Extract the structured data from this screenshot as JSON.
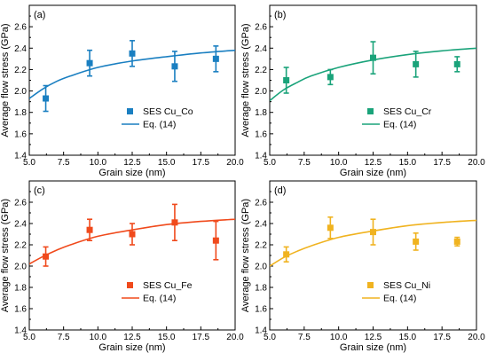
{
  "chart_data": [
    {
      "type": "scatter",
      "panel_label": "(a)",
      "xlabel": "Grain size (nm)",
      "ylabel": "Average flow stress (GPa)",
      "xlim": [
        5.0,
        20.0
      ],
      "ylim": [
        1.4,
        2.8
      ],
      "xticks": [
        "5.0",
        "7.5",
        "10.0",
        "12.5",
        "15.0",
        "17.5",
        "20.0"
      ],
      "yticks": [
        "1.4",
        "1.6",
        "1.8",
        "2.0",
        "2.2",
        "2.4",
        "2.6"
      ],
      "color": "#1a7fc1",
      "legend_position": "center-right",
      "series": [
        {
          "name": "SES Cu_Co",
          "kind": "points-with-error",
          "x": [
            6.2,
            9.4,
            12.5,
            15.6,
            18.6
          ],
          "y": [
            1.93,
            2.26,
            2.35,
            2.23,
            2.3
          ],
          "error": [
            0.12,
            0.12,
            0.12,
            0.14,
            0.12
          ]
        },
        {
          "name": "Eq. (14)",
          "kind": "line",
          "x": [
            5.0,
            6.0,
            7.0,
            8.0,
            10.0,
            12.5,
            15.0,
            17.5,
            20.0
          ],
          "y": [
            1.93,
            2.02,
            2.09,
            2.14,
            2.22,
            2.28,
            2.32,
            2.355,
            2.38
          ]
        }
      ]
    },
    {
      "type": "scatter",
      "panel_label": "(b)",
      "xlabel": "Grain size (nm)",
      "ylabel": "Average flow stress (GPa)",
      "xlim": [
        5.0,
        20.0
      ],
      "ylim": [
        1.4,
        2.8
      ],
      "xticks": [
        "5.0",
        "7.5",
        "10.0",
        "12.5",
        "15.0",
        "17.5",
        "20.0"
      ],
      "yticks": [
        "1.4",
        "1.6",
        "1.8",
        "2.0",
        "2.2",
        "2.4",
        "2.6"
      ],
      "color": "#1aa37a",
      "legend_position": "center-right",
      "series": [
        {
          "name": "SES Cu_Cr",
          "kind": "points-with-error",
          "x": [
            6.2,
            9.4,
            12.5,
            15.6,
            18.6
          ],
          "y": [
            2.1,
            2.13,
            2.31,
            2.25,
            2.25
          ],
          "error": [
            0.12,
            0.07,
            0.15,
            0.12,
            0.07
          ]
        },
        {
          "name": "Eq. (14)",
          "kind": "line",
          "x": [
            5.0,
            6.0,
            7.0,
            8.0,
            10.0,
            12.5,
            15.0,
            17.5,
            20.0
          ],
          "y": [
            1.91,
            2.01,
            2.08,
            2.14,
            2.22,
            2.29,
            2.34,
            2.375,
            2.4
          ]
        }
      ]
    },
    {
      "type": "scatter",
      "panel_label": "(c)",
      "xlabel": "Grain size (nm)",
      "ylabel": "Average flow stress (GPa)",
      "xlim": [
        5.0,
        20.0
      ],
      "ylim": [
        1.4,
        2.8
      ],
      "xticks": [
        "5.0",
        "7.5",
        "10.0",
        "12.5",
        "15.0",
        "17.5",
        "20.0"
      ],
      "yticks": [
        "1.4",
        "1.6",
        "1.8",
        "2.0",
        "2.2",
        "2.4",
        "2.6"
      ],
      "color": "#f04a1c",
      "legend_position": "bottom-right",
      "series": [
        {
          "name": "SES Cu_Fe",
          "kind": "points-with-error",
          "x": [
            6.2,
            9.4,
            12.5,
            15.6,
            18.6
          ],
          "y": [
            2.09,
            2.34,
            2.3,
            2.41,
            2.24
          ],
          "error": [
            0.09,
            0.1,
            0.1,
            0.17,
            0.18
          ]
        },
        {
          "name": "Eq. (14)",
          "kind": "line",
          "x": [
            5.0,
            6.0,
            7.0,
            8.0,
            10.0,
            12.5,
            15.0,
            17.5,
            20.0
          ],
          "y": [
            2.02,
            2.09,
            2.15,
            2.2,
            2.28,
            2.34,
            2.39,
            2.42,
            2.44
          ]
        }
      ]
    },
    {
      "type": "scatter",
      "panel_label": "(d)",
      "xlabel": "Grain size (nm)",
      "ylabel": "Average flow stress (GPa)",
      "xlim": [
        5.0,
        20.0
      ],
      "ylim": [
        1.4,
        2.8
      ],
      "xticks": [
        "5.0",
        "7.5",
        "10.0",
        "12.5",
        "15.0",
        "17.5",
        "20.0"
      ],
      "yticks": [
        "1.4",
        "1.6",
        "1.8",
        "2.0",
        "2.2",
        "2.4",
        "2.6"
      ],
      "color": "#f0b320",
      "legend_position": "bottom-right",
      "series": [
        {
          "name": "SES Cu_Ni",
          "kind": "points-with-error",
          "x": [
            6.2,
            9.4,
            12.5,
            15.6,
            18.6
          ],
          "y": [
            2.11,
            2.36,
            2.32,
            2.23,
            2.23
          ],
          "error": [
            0.07,
            0.1,
            0.12,
            0.08,
            0.04
          ]
        },
        {
          "name": "Eq. (14)",
          "kind": "line",
          "x": [
            5.0,
            6.0,
            7.0,
            8.0,
            10.0,
            12.5,
            15.0,
            17.5,
            20.0
          ],
          "y": [
            2.0,
            2.08,
            2.14,
            2.19,
            2.27,
            2.33,
            2.38,
            2.41,
            2.43
          ]
        }
      ]
    }
  ]
}
